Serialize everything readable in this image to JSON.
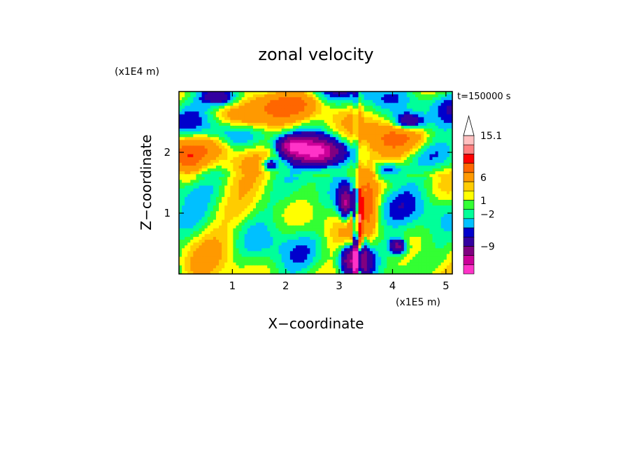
{
  "chart_data": {
    "type": "heatmap",
    "title": "zonal velocity",
    "xlabel": "X−coordinate",
    "ylabel": "Z−coordinate",
    "x_multiplier": "(x1E5 m)",
    "y_multiplier": "(x1E4 m)",
    "time_label": "t=150000 s",
    "x_ticks": [
      "1",
      "2",
      "3",
      "4",
      "5"
    ],
    "x_tick_values": [
      1,
      2,
      3,
      4,
      5
    ],
    "y_ticks": [
      "1",
      "2"
    ],
    "y_tick_values": [
      1,
      2
    ],
    "xlim": [
      0,
      5.12
    ],
    "ylim": [
      0,
      3.0
    ],
    "colorbar": {
      "levels": [
        -15,
        -12,
        -9,
        -6,
        -3,
        -2,
        -1,
        0,
        1,
        2,
        3,
        6,
        9,
        12,
        15.1
      ],
      "colors": [
        "#ff33c8",
        "#cc0099",
        "#800080",
        "#3300a0",
        "#0000cc",
        "#00c0ff",
        "#00ff99",
        "#33ff33",
        "#ffff00",
        "#ffcc00",
        "#ff9900",
        "#ff6600",
        "#ff0000",
        "#ff8080",
        "#ffc0c0"
      ],
      "tick_labels": [
        "15.1",
        "6",
        "1",
        "−2",
        "−9"
      ],
      "tick_values": [
        15.1,
        6,
        1,
        -2,
        -9
      ]
    },
    "description_values": {
      "min_est": -15,
      "max_est": 15.1
    }
  }
}
